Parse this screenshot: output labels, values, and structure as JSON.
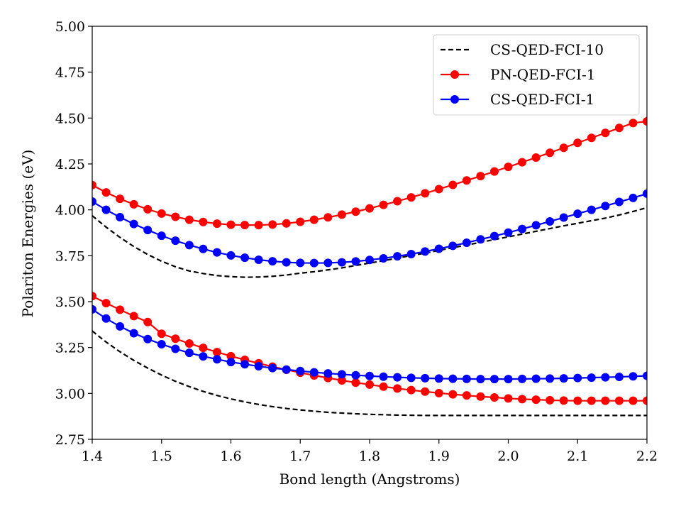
{
  "chart_data": {
    "type": "line",
    "xlabel": "Bond length (Angstroms)",
    "ylabel": "Polariton Energies (eV)",
    "xlim": [
      1.4,
      2.2
    ],
    "ylim": [
      2.75,
      5.0
    ],
    "xticks": [
      "1.4",
      "1.5",
      "1.6",
      "1.7",
      "1.8",
      "1.9",
      "2.0",
      "2.1",
      "2.2"
    ],
    "yticks": [
      "2.75",
      "3.00",
      "3.25",
      "3.50",
      "3.75",
      "4.00",
      "4.25",
      "4.50",
      "4.75",
      "5.00"
    ],
    "grid": false,
    "legend_position": "top-right",
    "x": [
      1.4,
      1.42,
      1.44,
      1.46,
      1.48,
      1.5,
      1.52,
      1.54,
      1.56,
      1.58,
      1.6,
      1.62,
      1.64,
      1.66,
      1.68,
      1.7,
      1.72,
      1.74,
      1.76,
      1.78,
      1.8,
      1.82,
      1.84,
      1.86,
      1.88,
      1.9,
      1.92,
      1.94,
      1.96,
      1.98,
      2.0,
      2.02,
      2.04,
      2.06,
      2.08,
      2.1,
      2.12,
      2.14,
      2.16,
      2.18,
      2.2
    ],
    "series": [
      {
        "name": "CS-QED-FCI-10",
        "color": "#000000",
        "style": "dashed",
        "marker": "none",
        "upper": [
          3.968,
          3.906,
          3.85,
          3.8,
          3.757,
          3.72,
          3.69,
          3.667,
          3.653,
          3.642,
          3.636,
          3.633,
          3.634,
          3.638,
          3.645,
          3.655,
          3.663,
          3.673,
          3.684,
          3.697,
          3.71,
          3.723,
          3.737,
          3.751,
          3.764,
          3.779,
          3.794,
          3.808,
          3.823,
          3.838,
          3.853,
          3.868,
          3.883,
          3.898,
          3.913,
          3.927,
          3.941,
          3.955,
          3.972,
          3.991,
          4.012
        ],
        "lower": [
          3.34,
          3.28,
          3.227,
          3.18,
          3.138,
          3.1,
          3.066,
          3.037,
          3.011,
          2.989,
          2.97,
          2.954,
          2.94,
          2.928,
          2.918,
          2.91,
          2.903,
          2.897,
          2.893,
          2.889,
          2.886,
          2.884,
          2.882,
          2.881,
          2.88,
          2.88,
          2.88,
          2.88,
          2.88,
          2.88,
          2.88,
          2.88,
          2.88,
          2.88,
          2.88,
          2.88,
          2.88,
          2.88,
          2.88,
          2.88,
          2.88
        ]
      },
      {
        "name": "PN-QED-FCI-1",
        "color": "#ff0000",
        "style": "solid",
        "marker": "circle",
        "upper": [
          4.135,
          4.095,
          4.06,
          4.03,
          4.003,
          3.98,
          3.962,
          3.946,
          3.934,
          3.925,
          3.919,
          3.917,
          3.917,
          3.92,
          3.926,
          3.935,
          3.946,
          3.959,
          3.974,
          3.99,
          4.008,
          4.027,
          4.047,
          4.068,
          4.09,
          4.113,
          4.136,
          4.16,
          4.184,
          4.209,
          4.234,
          4.259,
          4.285,
          4.311,
          4.338,
          4.365,
          4.392,
          4.419,
          4.446,
          4.473,
          4.482
        ],
        "lower": [
          3.53,
          3.492,
          3.456,
          3.421,
          3.389,
          3.325,
          3.298,
          3.272,
          3.248,
          3.225,
          3.203,
          3.183,
          3.164,
          3.146,
          3.129,
          3.113,
          3.098,
          3.084,
          3.071,
          3.059,
          3.048,
          3.037,
          3.027,
          3.018,
          3.01,
          3.002,
          2.995,
          2.989,
          2.983,
          2.978,
          2.973,
          2.969,
          2.966,
          2.963,
          2.961,
          2.96,
          2.96,
          2.96,
          2.96,
          2.96,
          2.96
        ]
      },
      {
        "name": "CS-QED-FCI-1",
        "color": "#0000ff",
        "style": "solid",
        "marker": "circle",
        "upper": [
          4.045,
          4.0,
          3.96,
          3.923,
          3.89,
          3.859,
          3.832,
          3.808,
          3.787,
          3.768,
          3.752,
          3.739,
          3.728,
          3.72,
          3.714,
          3.711,
          3.71,
          3.711,
          3.714,
          3.719,
          3.727,
          3.736,
          3.747,
          3.759,
          3.773,
          3.788,
          3.804,
          3.821,
          3.839,
          3.857,
          3.876,
          3.896,
          3.916,
          3.937,
          3.958,
          3.979,
          4.0,
          4.021,
          4.043,
          4.065,
          4.088
        ],
        "lower": [
          3.458,
          3.408,
          3.365,
          3.328,
          3.296,
          3.268,
          3.243,
          3.221,
          3.202,
          3.186,
          3.171,
          3.159,
          3.148,
          3.138,
          3.13,
          3.122,
          3.115,
          3.109,
          3.104,
          3.099,
          3.095,
          3.091,
          3.088,
          3.085,
          3.083,
          3.081,
          3.08,
          3.079,
          3.078,
          3.078,
          3.078,
          3.079,
          3.08,
          3.081,
          3.082,
          3.084,
          3.086,
          3.088,
          3.09,
          3.093,
          3.096
        ]
      }
    ]
  }
}
